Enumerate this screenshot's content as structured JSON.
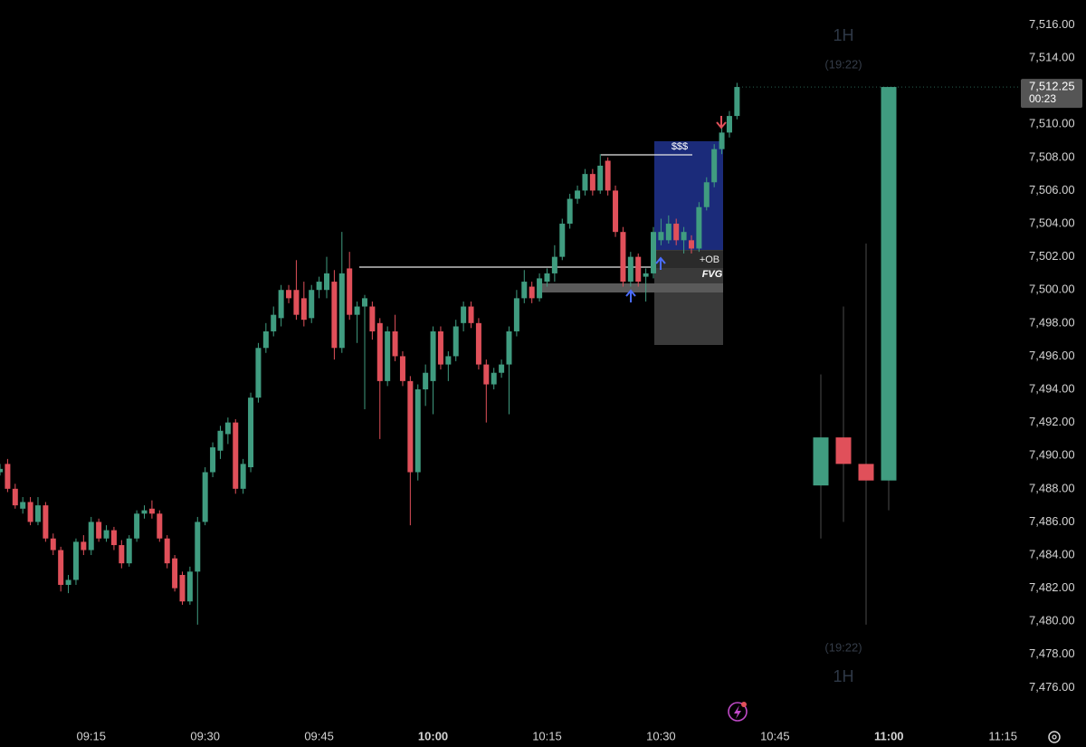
{
  "chart_data": {
    "type": "candlestick",
    "up_color": "#409c80",
    "down_color": "#e0505a",
    "x": [
      "09:03",
      "09:04",
      "09:05",
      "09:06",
      "09:07",
      "09:08",
      "09:09",
      "09:10",
      "09:11",
      "09:12",
      "09:13",
      "09:14",
      "09:15",
      "09:16",
      "09:17",
      "09:18",
      "09:19",
      "09:20",
      "09:21",
      "09:22",
      "09:23",
      "09:24",
      "09:25",
      "09:26",
      "09:27",
      "09:28",
      "09:29",
      "09:30",
      "09:31",
      "09:32",
      "09:33",
      "09:34",
      "09:35",
      "09:36",
      "09:37",
      "09:38",
      "09:39",
      "09:40",
      "09:41",
      "09:42",
      "09:43",
      "09:44",
      "09:45",
      "09:46",
      "09:47",
      "09:48",
      "09:49",
      "09:50",
      "09:51",
      "09:52",
      "09:53",
      "09:54",
      "09:55",
      "09:56",
      "09:57",
      "09:58",
      "09:59",
      "10:00",
      "10:01",
      "10:02",
      "10:03",
      "10:04",
      "10:05",
      "10:06",
      "10:07",
      "10:08",
      "10:09",
      "10:10",
      "10:11",
      "10:12",
      "10:13",
      "10:14",
      "10:15",
      "10:16",
      "10:17",
      "10:18",
      "10:19",
      "10:20",
      "10:21",
      "10:22",
      "10:23",
      "10:24",
      "10:25",
      "10:26",
      "10:27",
      "10:28",
      "10:29",
      "10:30",
      "10:31",
      "10:32",
      "10:33",
      "10:34",
      "10:35",
      "10:36",
      "10:37",
      "10:38",
      "10:39",
      "10:40"
    ],
    "open": [
      7489,
      7489.5,
      7488,
      7486.8,
      7487.2,
      7486,
      7487,
      7485,
      7484.3,
      7482.2,
      7482.5,
      7484.8,
      7484.3,
      7486,
      7485,
      7485.5,
      7484.6,
      7483.5,
      7485,
      7486.5,
      7486.8,
      7486.5,
      7485,
      7483.8,
      7482.8,
      7481.2,
      7483,
      7486,
      7489,
      7490.3,
      7491.3,
      7492,
      7488,
      7489.3,
      7493.5,
      7496.5,
      7497.5,
      7498.3,
      7500,
      7500,
      7499.5,
      7498.3,
      7500,
      7500,
      7500.5,
      7496.5,
      7501.3,
      7498.5,
      7499,
      7499,
      7498,
      7494.5,
      7497.5,
      7496,
      7494.5,
      7489,
      7494,
      7494.5,
      7497.5,
      7495.5,
      7496,
      7498,
      7499,
      7498,
      7495.5,
      7494.3,
      7495,
      7495.5,
      7497.5,
      7499.5,
      7500.2,
      7499.5,
      7500.5,
      7501,
      7502,
      7504,
      7505.5,
      7506,
      7507,
      7506,
      7507.8,
      7506,
      7503.5,
      7500.5,
      7502,
      7500.8,
      7501,
      7503,
      7503,
      7504,
      7503,
      7503,
      7502.5,
      7505,
      7506.5,
      7508.5,
      7509.5,
      7510.5
    ],
    "high": [
      7489.5,
      7489.8,
      7488.3,
      7487.5,
      7487.5,
      7487.5,
      7487.2,
      7485.3,
      7484.5,
      7482.8,
      7485,
      7485.2,
      7486.3,
      7486.2,
      7485.8,
      7485.7,
      7484.9,
      7485.2,
      7486.7,
      7487,
      7487.3,
      7486.7,
      7485.2,
      7484,
      7483,
      7483.3,
      7486.3,
      7489.3,
      7490.8,
      7491.8,
      7492.3,
      7492.2,
      7489.8,
      7493.8,
      7496.8,
      7498,
      7499,
      7500.3,
      7500.3,
      7501.8,
      7500.5,
      7500.3,
      7500.8,
      7502,
      7501.2,
      7503.5,
      7502.3,
      7499.3,
      7499.7,
      7499.3,
      7498.3,
      7497.8,
      7498.5,
      7496.3,
      7494.8,
      7494.3,
      7495.5,
      7497.8,
      7497.8,
      7496.3,
      7498.2,
      7499.3,
      7499.3,
      7498.3,
      7495.8,
      7495.3,
      7495.8,
      7497.8,
      7500,
      7501.2,
      7500.5,
      7501,
      7501.3,
      7502.7,
      7504.3,
      7505.8,
      7506.3,
      7507.3,
      7507.3,
      7508.2,
      7508,
      7506.3,
      7503.8,
      7502.3,
      7502.2,
      7501.3,
      7503.8,
      7504.3,
      7504.5,
      7504.3,
      7503.8,
      7503.3,
      7505.3,
      7506.8,
      7508.8,
      7509.8,
      7510.8,
      7512.5
    ],
    "low": [
      7488.8,
      7487.8,
      7486.8,
      7486.5,
      7485.8,
      7485.8,
      7484.8,
      7484,
      7481.8,
      7481.7,
      7482.2,
      7484,
      7484,
      7484.8,
      7484.8,
      7484.3,
      7483.2,
      7483.3,
      7484.8,
      7486.2,
      7486.2,
      7484.8,
      7483.2,
      7481.8,
      7481,
      7481,
      7479.8,
      7485.8,
      7488.7,
      7489.8,
      7490.7,
      7487.7,
      7487.7,
      7489,
      7493.2,
      7496.2,
      7497.2,
      7497.8,
      7499.2,
      7498.2,
      7497.8,
      7498,
      7499.5,
      7499.5,
      7495.8,
      7496.2,
      7498.2,
      7496.8,
      7492.8,
      7497,
      7491,
      7494.2,
      7495.7,
      7494.2,
      7485.8,
      7488.5,
      7493,
      7492.5,
      7495.2,
      7494.5,
      7495.7,
      7497.5,
      7497.7,
      7495.2,
      7492,
      7494,
      7494.7,
      7492.5,
      7497.2,
      7499.2,
      7499.2,
      7499.3,
      7500.2,
      7500.5,
      7501.8,
      7503.7,
      7505.2,
      7505.7,
      7505.7,
      7505.8,
      7505.7,
      7503.2,
      7500.2,
      7500.2,
      7500.2,
      7499.3,
      7500.7,
      7502.7,
      7502.8,
      7502.7,
      7502.2,
      7502.2,
      7502.3,
      7504.8,
      7506.2,
      7508.2,
      7509.2,
      7510.3
    ],
    "close": [
      7489.2,
      7488,
      7487,
      7487.2,
      7486,
      7487,
      7485,
      7484.3,
      7482.2,
      7482.5,
      7484.8,
      7484.3,
      7486,
      7485,
      7485.5,
      7484.6,
      7483.5,
      7485,
      7486.5,
      7486.7,
      7486.5,
      7485,
      7483.5,
      7482,
      7481.2,
      7483,
      7486,
      7489,
      7490.5,
      7491.5,
      7492,
      7488,
      7489.5,
      7493.5,
      7496.5,
      7497.5,
      7498.5,
      7500,
      7499.5,
      7498.5,
      7498.2,
      7500,
      7500.5,
      7501,
      7496.5,
      7501,
      7498.5,
      7499,
      7499.5,
      7497.5,
      7494.5,
      7497.5,
      7496,
      7494.5,
      7489,
      7494,
      7495,
      7497.5,
      7495.5,
      7496,
      7497.8,
      7499,
      7498,
      7495.5,
      7494.3,
      7495,
      7495.5,
      7497.5,
      7499.5,
      7500.5,
      7499.5,
      7500.7,
      7501,
      7502,
      7504,
      7505.5,
      7506,
      7507,
      7506,
      7507.5,
      7506,
      7503.5,
      7500.5,
      7502,
      7500.5,
      7501,
      7503.5,
      7503.5,
      7504,
      7503,
      7503.5,
      7502.5,
      7505,
      7506.5,
      7508.5,
      7509.5,
      7510.5,
      7512.25
    ],
    "xlim": [
      "09:03",
      "11:17"
    ],
    "xticks": [
      "09:15",
      "09:30",
      "09:45",
      "10:00",
      "10:15",
      "10:30",
      "10:45",
      "11:00",
      "11:15"
    ],
    "ylim": [
      7474,
      7517.5
    ],
    "yticks": [
      {
        "value": 7476,
        "label": "7,476.00"
      },
      {
        "value": 7478,
        "label": "7,478.00"
      },
      {
        "value": 7480,
        "label": "7,480.00"
      },
      {
        "value": 7482,
        "label": "7,482.00"
      },
      {
        "value": 7484,
        "label": "7,484.00"
      },
      {
        "value": 7486,
        "label": "7,486.00"
      },
      {
        "value": 7488,
        "label": "7,488.00"
      },
      {
        "value": 7490,
        "label": "7,490.00"
      },
      {
        "value": 7492,
        "label": "7,492.00"
      },
      {
        "value": 7494,
        "label": "7,494.00"
      },
      {
        "value": 7496,
        "label": "7,496.00"
      },
      {
        "value": 7498,
        "label": "7,498.00"
      },
      {
        "value": 7500,
        "label": "7,500.00"
      },
      {
        "value": 7502,
        "label": "7,502.00"
      },
      {
        "value": 7504,
        "label": "7,504.00"
      },
      {
        "value": 7506,
        "label": "7,506.00"
      },
      {
        "value": 7508,
        "label": "7,508.00"
      },
      {
        "value": 7510,
        "label": "7,510.00"
      },
      {
        "value": 7512,
        "label": "7,512.00"
      },
      {
        "value": 7514,
        "label": "7,514.00"
      },
      {
        "value": 7516,
        "label": "7,516.00"
      }
    ],
    "last_price": {
      "value": 7512.25,
      "label": "7,512.25"
    },
    "countdown": "00:23",
    "overlay": {
      "label": "1H",
      "countdown": "(19:22)",
      "open": [
        7488.2,
        7491.1,
        7489.5,
        7488.5
      ],
      "high": [
        7494.9,
        7499,
        7502.8,
        7512.25
      ],
      "low": [
        7485,
        7486,
        7479.8,
        7486.7
      ],
      "close": [
        7491.1,
        7489.5,
        7488.5,
        7512.25
      ]
    },
    "annotations": {
      "liquidity": "$$$",
      "order_block": "+OB",
      "fvg": "FVG"
    }
  }
}
